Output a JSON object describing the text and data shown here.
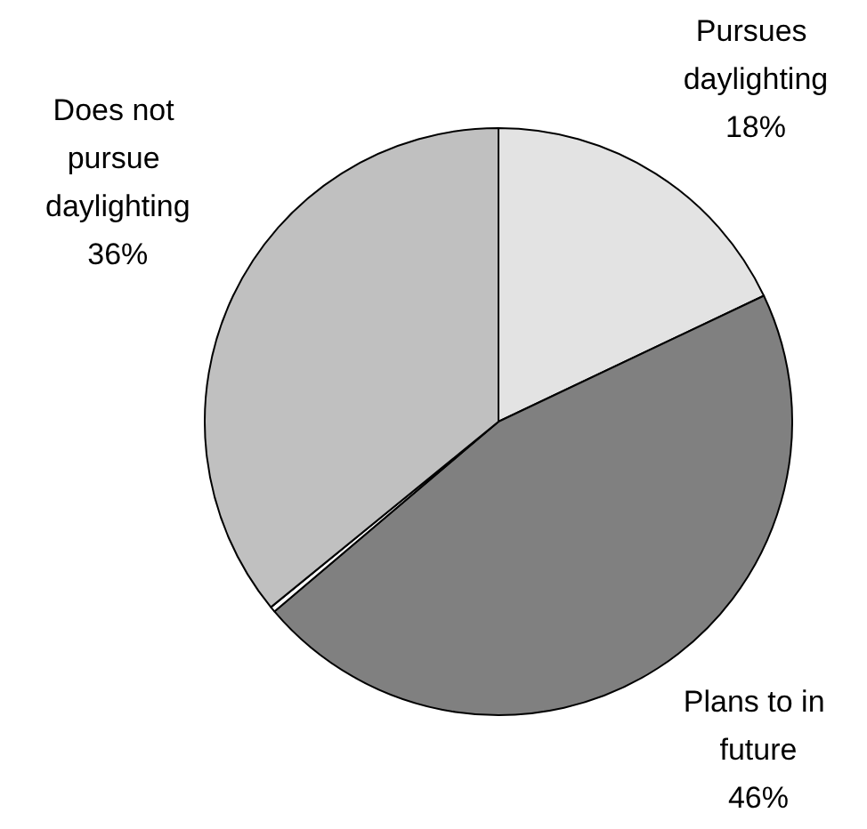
{
  "chart_data": {
    "type": "pie",
    "categories": [
      "Pursues daylighting",
      "Plans to in future",
      null,
      "Does not pursue daylighting"
    ],
    "values": [
      18,
      46,
      0.3,
      36
    ],
    "value_labels": [
      "18%",
      "46%",
      null,
      "36%"
    ],
    "colors": [
      "#e3e3e3",
      "#808080",
      "#ffffff",
      "#c0c0c0"
    ],
    "legend": false
  }
}
